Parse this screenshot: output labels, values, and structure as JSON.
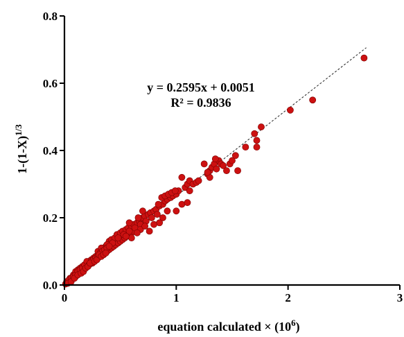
{
  "chart_data": {
    "type": "scatter",
    "xlabel_main": "equation calculated × (10",
    "xlabel_sup": "6",
    "xlabel_end": ")",
    "ylabel_main": "1-(1-X)",
    "ylabel_sup": "1/3",
    "xlim": [
      0,
      3
    ],
    "ylim": [
      0,
      0.8
    ],
    "x_ticks": [
      "0",
      "1",
      "2",
      "3"
    ],
    "y_ticks": [
      "0.0",
      "0.2",
      "0.4",
      "0.6",
      "0.8"
    ],
    "annotation_eq": "y = 0.2595x + 0.0051",
    "annotation_r2": "R² = 0.9836",
    "fit": {
      "slope": 0.2595,
      "intercept": 0.0051,
      "x_range": [
        0,
        2.7
      ]
    },
    "marker_color": "#cc1111",
    "grid": false,
    "points": [
      [
        0.01,
        0.003
      ],
      [
        0.02,
        0.006
      ],
      [
        0.03,
        0.008
      ],
      [
        0.04,
        0.01
      ],
      [
        0.05,
        0.012
      ],
      [
        0.06,
        0.015
      ],
      [
        0.07,
        0.018
      ],
      [
        0.08,
        0.02
      ],
      [
        0.09,
        0.022
      ],
      [
        0.1,
        0.025
      ],
      [
        0.11,
        0.03
      ],
      [
        0.12,
        0.032
      ],
      [
        0.13,
        0.035
      ],
      [
        0.14,
        0.04
      ],
      [
        0.15,
        0.042
      ],
      [
        0.16,
        0.045
      ],
      [
        0.17,
        0.05
      ],
      [
        0.18,
        0.052
      ],
      [
        0.19,
        0.055
      ],
      [
        0.2,
        0.058
      ],
      [
        0.05,
        0.02
      ],
      [
        0.08,
        0.03
      ],
      [
        0.1,
        0.04
      ],
      [
        0.12,
        0.045
      ],
      [
        0.14,
        0.05
      ],
      [
        0.16,
        0.055
      ],
      [
        0.18,
        0.06
      ],
      [
        0.2,
        0.065
      ],
      [
        0.22,
        0.07
      ],
      [
        0.24,
        0.075
      ],
      [
        0.26,
        0.08
      ],
      [
        0.28,
        0.085
      ],
      [
        0.25,
        0.065
      ],
      [
        0.3,
        0.08
      ],
      [
        0.32,
        0.09
      ],
      [
        0.34,
        0.095
      ],
      [
        0.36,
        0.1
      ],
      [
        0.38,
        0.1
      ],
      [
        0.4,
        0.105
      ],
      [
        0.42,
        0.11
      ],
      [
        0.44,
        0.115
      ],
      [
        0.46,
        0.12
      ],
      [
        0.48,
        0.125
      ],
      [
        0.5,
        0.13
      ],
      [
        0.52,
        0.135
      ],
      [
        0.54,
        0.14
      ],
      [
        0.56,
        0.145
      ],
      [
        0.58,
        0.15
      ],
      [
        0.6,
        0.155
      ],
      [
        0.62,
        0.16
      ],
      [
        0.35,
        0.105
      ],
      [
        0.37,
        0.115
      ],
      [
        0.4,
        0.13
      ],
      [
        0.42,
        0.135
      ],
      [
        0.45,
        0.14
      ],
      [
        0.47,
        0.15
      ],
      [
        0.5,
        0.155
      ],
      [
        0.52,
        0.16
      ],
      [
        0.55,
        0.165
      ],
      [
        0.57,
        0.17
      ],
      [
        0.6,
        0.175
      ],
      [
        0.62,
        0.18
      ],
      [
        0.65,
        0.185
      ],
      [
        0.67,
        0.19
      ],
      [
        0.7,
        0.2
      ],
      [
        0.72,
        0.205
      ],
      [
        0.75,
        0.21
      ],
      [
        0.77,
        0.215
      ],
      [
        0.8,
        0.22
      ],
      [
        0.82,
        0.225
      ],
      [
        0.3,
        0.1
      ],
      [
        0.33,
        0.11
      ],
      [
        0.38,
        0.12
      ],
      [
        0.43,
        0.125
      ],
      [
        0.48,
        0.14
      ],
      [
        0.53,
        0.15
      ],
      [
        0.58,
        0.16
      ],
      [
        0.63,
        0.17
      ],
      [
        0.68,
        0.18
      ],
      [
        0.73,
        0.19
      ],
      [
        0.78,
        0.2
      ],
      [
        0.83,
        0.21
      ],
      [
        0.85,
        0.235
      ],
      [
        0.88,
        0.24
      ],
      [
        0.9,
        0.25
      ],
      [
        0.92,
        0.255
      ],
      [
        0.95,
        0.26
      ],
      [
        0.97,
        0.265
      ],
      [
        1.0,
        0.27
      ],
      [
        1.02,
        0.28
      ],
      [
        0.84,
        0.24
      ],
      [
        0.87,
        0.26
      ],
      [
        0.9,
        0.265
      ],
      [
        0.93,
        0.27
      ],
      [
        0.96,
        0.275
      ],
      [
        0.99,
        0.28
      ],
      [
        0.85,
        0.185
      ],
      [
        0.88,
        0.2
      ],
      [
        0.92,
        0.22
      ],
      [
        1.05,
        0.24
      ],
      [
        1.08,
        0.29
      ],
      [
        1.1,
        0.3
      ],
      [
        1.12,
        0.31
      ],
      [
        1.15,
        0.3
      ],
      [
        1.18,
        0.305
      ],
      [
        1.2,
        0.31
      ],
      [
        1.05,
        0.32
      ],
      [
        1.12,
        0.28
      ],
      [
        1.1,
        0.245
      ],
      [
        1.0,
        0.22
      ],
      [
        0.68,
        0.165
      ],
      [
        0.72,
        0.175
      ],
      [
        0.76,
        0.16
      ],
      [
        0.8,
        0.18
      ],
      [
        0.6,
        0.14
      ],
      [
        0.55,
        0.145
      ],
      [
        0.65,
        0.155
      ],
      [
        0.7,
        0.22
      ],
      [
        0.58,
        0.185
      ],
      [
        0.66,
        0.2
      ],
      [
        1.28,
        0.33
      ],
      [
        1.3,
        0.34
      ],
      [
        1.32,
        0.35
      ],
      [
        1.34,
        0.36
      ],
      [
        1.36,
        0.345
      ],
      [
        1.38,
        0.37
      ],
      [
        1.4,
        0.36
      ],
      [
        1.42,
        0.355
      ],
      [
        1.45,
        0.34
      ],
      [
        1.48,
        0.36
      ],
      [
        1.3,
        0.32
      ],
      [
        1.35,
        0.375
      ],
      [
        1.25,
        0.36
      ],
      [
        1.28,
        0.335
      ],
      [
        1.5,
        0.37
      ],
      [
        1.53,
        0.385
      ],
      [
        1.55,
        0.34
      ],
      [
        1.62,
        0.41
      ],
      [
        1.7,
        0.45
      ],
      [
        1.72,
        0.43
      ],
      [
        1.76,
        0.47
      ],
      [
        1.72,
        0.41
      ],
      [
        2.02,
        0.52
      ],
      [
        2.22,
        0.55
      ],
      [
        2.68,
        0.675
      ],
      [
        0.02,
        0.01
      ],
      [
        0.04,
        0.015
      ],
      [
        0.06,
        0.02
      ],
      [
        0.08,
        0.025
      ],
      [
        0.1,
        0.03
      ],
      [
        0.12,
        0.04
      ],
      [
        0.14,
        0.045
      ],
      [
        0.16,
        0.05
      ],
      [
        0.18,
        0.06
      ],
      [
        0.2,
        0.07
      ],
      [
        0.22,
        0.06
      ],
      [
        0.24,
        0.07
      ],
      [
        0.26,
        0.075
      ],
      [
        0.28,
        0.08
      ],
      [
        0.3,
        0.085
      ],
      [
        0.32,
        0.095
      ],
      [
        0.34,
        0.1
      ],
      [
        0.36,
        0.105
      ],
      [
        0.38,
        0.11
      ],
      [
        0.4,
        0.115
      ],
      [
        0.03,
        0.005
      ],
      [
        0.06,
        0.01
      ],
      [
        0.09,
        0.02
      ],
      [
        0.12,
        0.03
      ],
      [
        0.15,
        0.035
      ],
      [
        0.17,
        0.04
      ],
      [
        0.19,
        0.05
      ],
      [
        0.21,
        0.055
      ],
      [
        0.23,
        0.065
      ],
      [
        0.27,
        0.07
      ],
      [
        0.29,
        0.075
      ],
      [
        0.31,
        0.09
      ],
      [
        0.33,
        0.085
      ],
      [
        0.35,
        0.09
      ],
      [
        0.37,
        0.095
      ]
    ]
  }
}
